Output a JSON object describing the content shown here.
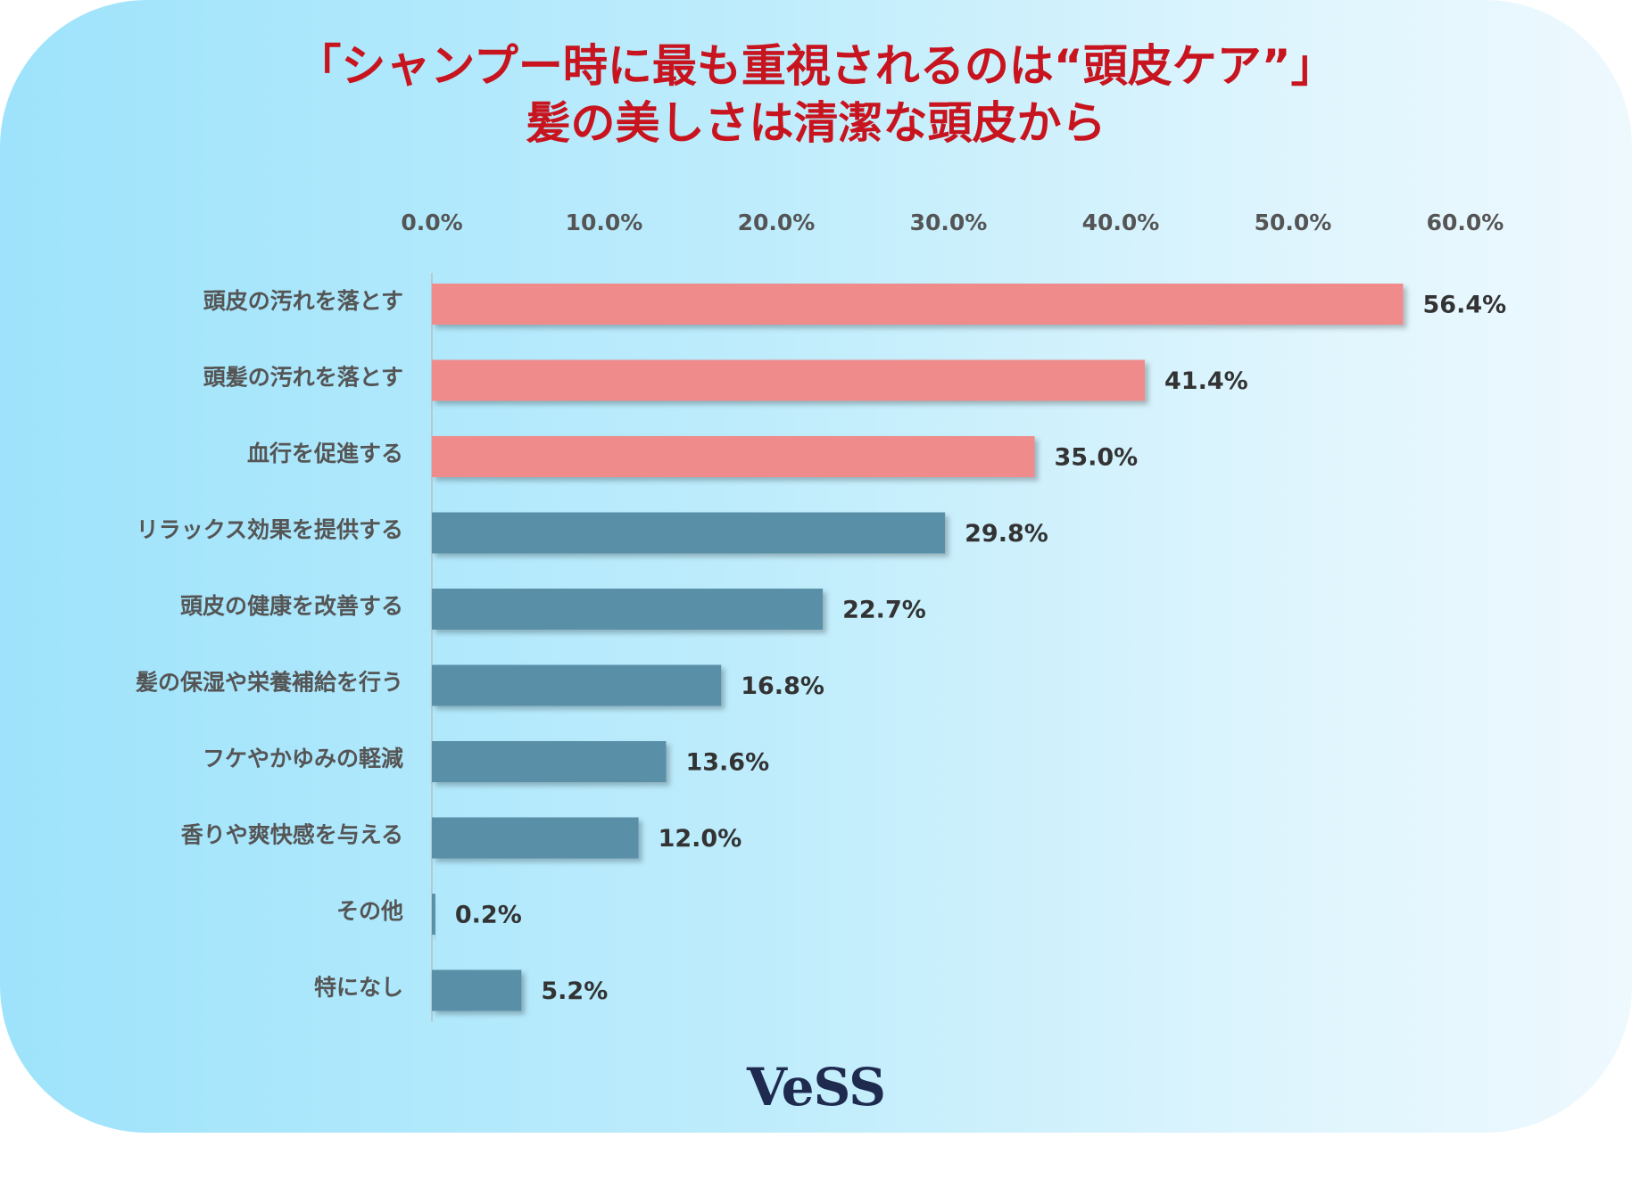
{
  "header": {
    "title_line1": "「シャンプー時に最も重視されるのは“頭皮ケア”」",
    "title_line2": "髪の美しさは清潔な頭皮から"
  },
  "brand": {
    "logo_text": "VeSS"
  },
  "colors": {
    "highlight": "#f08b8b",
    "default": "#5a8fa8",
    "title": "#c8141e",
    "text": "#333333"
  },
  "chart_data": {
    "type": "bar",
    "orientation": "horizontal",
    "categories": [
      "頭皮の汚れを落とす",
      "頭髪の汚れを落とす",
      "血行を促進する",
      "リラックス効果を提供する",
      "頭皮の健康を改善する",
      "髪の保湿や栄養補給を行う",
      "フケやかゆみの軽減",
      "香りや爽快感を与える",
      "その他",
      "特になし"
    ],
    "values": [
      56.4,
      41.4,
      35.0,
      29.8,
      22.7,
      16.8,
      13.6,
      12.0,
      0.2,
      5.2
    ],
    "value_labels": [
      "56.4%",
      "41.4%",
      "35.0%",
      "29.8%",
      "22.7%",
      "16.8%",
      "13.6%",
      "12.0%",
      "0.2%",
      "5.2%"
    ],
    "highlighted": [
      true,
      true,
      true,
      false,
      false,
      false,
      false,
      false,
      false,
      false
    ],
    "xlim": [
      0,
      60
    ],
    "x_ticks": [
      "0.0%",
      "10.0%",
      "20.0%",
      "30.0%",
      "40.0%",
      "50.0%",
      "60.0%"
    ],
    "axis_position": "top",
    "grid": false,
    "legend": "none"
  }
}
